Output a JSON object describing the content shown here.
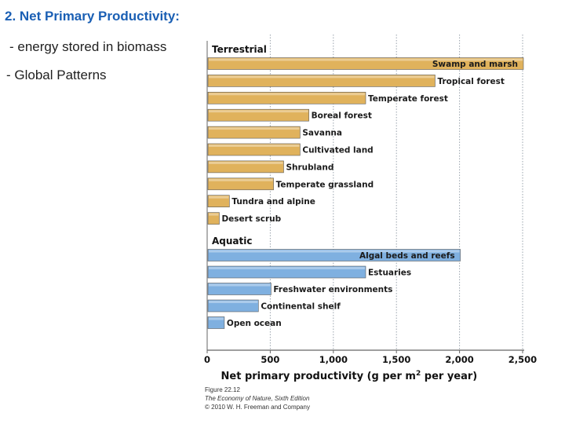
{
  "slide": {
    "title": "2. Net Primary Productivity:",
    "bullets": [
      " - energy stored in biomass",
      "- Global Patterns"
    ]
  },
  "chart_data": {
    "type": "bar",
    "orientation": "horizontal",
    "groups": [
      {
        "name": "Terrestrial",
        "color": "#e0b25c",
        "categories": [
          "Swamp and marsh",
          "Tropical forest",
          "Temperate forest",
          "Boreal forest",
          "Savanna",
          "Cultivated land",
          "Shrubland",
          "Temperate grassland",
          "Tundra and alpine",
          "Desert scrub"
        ],
        "values": [
          2500,
          1800,
          1250,
          800,
          730,
          730,
          600,
          520,
          170,
          90
        ]
      },
      {
        "name": "Aquatic",
        "color": "#7fb0e0",
        "categories": [
          "Algal beds and reefs",
          "Estuaries",
          "Freshwater environments",
          "Continental shelf",
          "Open ocean"
        ],
        "values": [
          2000,
          1250,
          500,
          400,
          130
        ]
      }
    ],
    "xlabel": "Net primary productivity (g per m",
    "xlabel_sup": "2",
    "xlabel_tail": " per year)",
    "xlim": [
      0,
      2500
    ],
    "xticks": [
      0,
      500,
      1000,
      1500,
      2000,
      2500
    ],
    "xtick_labels": [
      "0",
      "500",
      "1,000",
      "1,500",
      "2,000",
      "2,500"
    ],
    "grid": true
  },
  "caption": {
    "figure": "Figure 22.12",
    "book": "The Economy of Nature, Sixth Edition",
    "copyright": "© 2010 W. H. Freeman and Company"
  }
}
